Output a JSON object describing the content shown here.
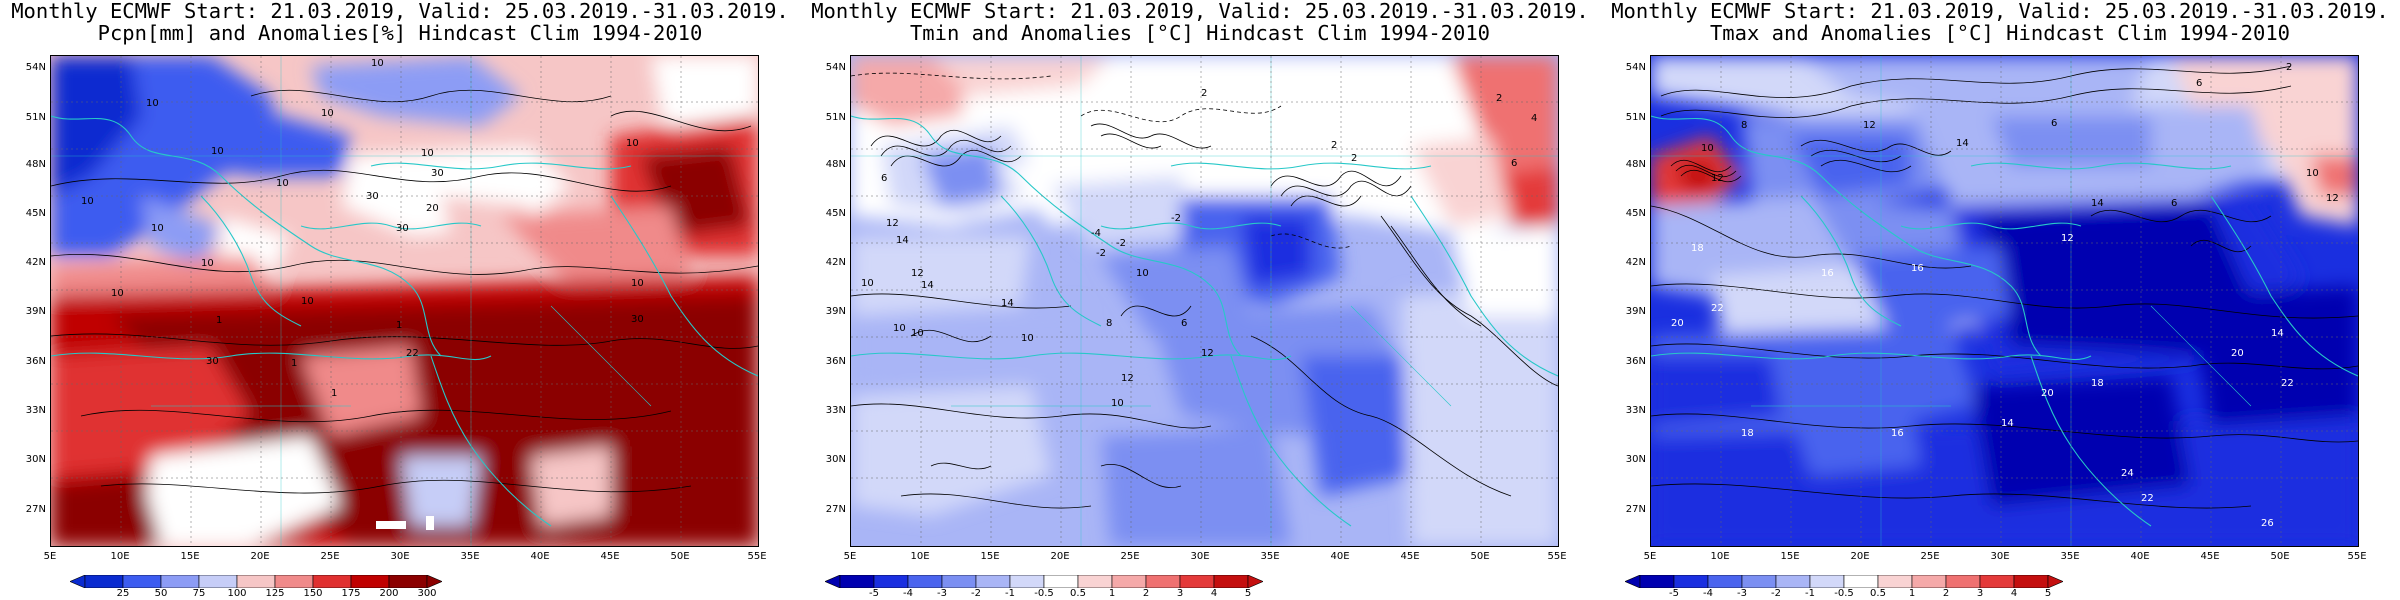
{
  "panels": [
    {
      "title_line1": "Monthly ECMWF Start: 21.03.2019, Valid: 25.03.2019.-31.03.2019.",
      "title_line2": "Pcpn[mm] and Anomalies[%] Hindcast Clim 1994-2010",
      "colorbar_labels": [
        "25",
        "50",
        "75",
        "100",
        "125",
        "150",
        "175",
        "200",
        "300"
      ],
      "contour_labels": [
        "10",
        "10",
        "10",
        "10",
        "10",
        "10",
        "10",
        "10",
        "30",
        "30",
        "30",
        "20",
        "10",
        "10",
        "10",
        "10",
        "1",
        "1",
        "1",
        "1",
        "22",
        "30",
        "30",
        "10"
      ]
    },
    {
      "title_line1": "Monthly ECMWF Start: 21.03.2019, Valid: 25.03.2019.-31.03.2019.",
      "title_line2": "Tmin and Anomalies [°C] Hindcast Clim 1994-2010",
      "colorbar_labels": [
        "-5",
        "-4",
        "-3",
        "-2",
        "-1",
        "-0.5",
        "0.5",
        "1",
        "2",
        "3",
        "4",
        "5"
      ],
      "contour_labels": [
        "2",
        "2",
        "2",
        "4",
        "2",
        "6",
        "6",
        "2",
        "-2",
        "-4",
        "-2",
        "-2",
        "12",
        "14",
        "10",
        "10",
        "14",
        "8",
        "10",
        "12",
        "6",
        "12",
        "10",
        "10",
        "14",
        "12",
        "10"
      ]
    },
    {
      "title_line1": "Monthly ECMWF Start: 21.03.2019, Valid: 25.03.2019.-31.03.2019.",
      "title_line2": "Tmax and Anomalies [°C] Hindcast Clim 1994-2010",
      "colorbar_labels": [
        "-5",
        "-4",
        "-3",
        "-2",
        "-1",
        "-0.5",
        "0.5",
        "1",
        "2",
        "3",
        "4",
        "5"
      ],
      "contour_labels": [
        "6",
        "2",
        "6",
        "8",
        "10",
        "12",
        "12",
        "14",
        "10",
        "12",
        "14",
        "6",
        "18",
        "16",
        "16",
        "20",
        "22",
        "24",
        "22",
        "26",
        "18",
        "16",
        "14",
        "12",
        "14",
        "20",
        "22",
        "18",
        "20"
      ]
    }
  ],
  "lat_labels": [
    "54N",
    "51N",
    "48N",
    "45N",
    "42N",
    "39N",
    "36N",
    "33N",
    "30N",
    "27N"
  ],
  "lon_labels": [
    "5E",
    "10E",
    "15E",
    "20E",
    "25E",
    "30E",
    "35E",
    "40E",
    "45E",
    "50E",
    "55E"
  ],
  "colors": {
    "precip_scale": [
      "#0a2bd0",
      "#3c5cf0",
      "#8c9cf5",
      "#c6cdf7",
      "#f6c6c6",
      "#f08a8a",
      "#e03030",
      "#c00000",
      "#8b0000"
    ],
    "temp_scale": [
      "#0000b0",
      "#1a2fe0",
      "#4a64ee",
      "#7b8ff2",
      "#a9b5f6",
      "#d2d8f9",
      "#ffffff",
      "#f9d3d3",
      "#f5a9a9",
      "#ef7171",
      "#e43a3a",
      "#c40f0f"
    ],
    "coast": "#27c8c8"
  }
}
